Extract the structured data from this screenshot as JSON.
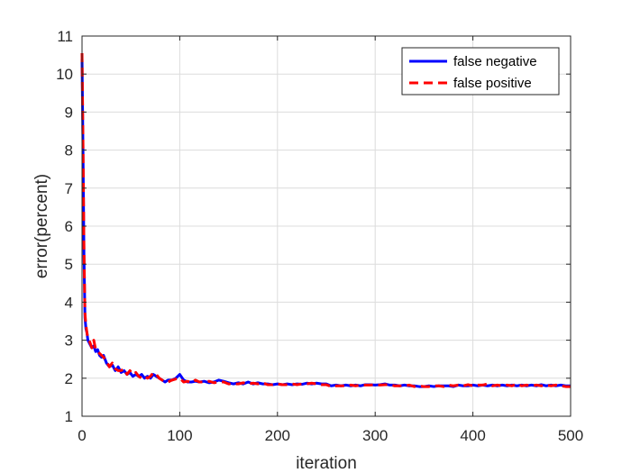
{
  "chart_data": {
    "type": "line",
    "xlabel": "iteration",
    "ylabel": "error(percent)",
    "xlim": [
      0,
      500
    ],
    "ylim": [
      1,
      11
    ],
    "xticks": [
      0,
      100,
      200,
      300,
      400,
      500
    ],
    "yticks": [
      1,
      2,
      3,
      4,
      5,
      6,
      7,
      8,
      9,
      10,
      11
    ],
    "grid": true,
    "legend_position": "top-right",
    "series": [
      {
        "name": "false negative",
        "color": "#0000ff",
        "style": "solid",
        "x": [
          0,
          1,
          2,
          3,
          4,
          5,
          6,
          8,
          10,
          12,
          14,
          16,
          18,
          20,
          22,
          25,
          28,
          31,
          34,
          37,
          40,
          43,
          46,
          49,
          52,
          55,
          58,
          61,
          64,
          67,
          70,
          73,
          76,
          79,
          82,
          85,
          88,
          92,
          96,
          100,
          104,
          108,
          112,
          116,
          120,
          125,
          130,
          135,
          140,
          145,
          150,
          155,
          160,
          165,
          170,
          175,
          180,
          185,
          190,
          195,
          200,
          205,
          210,
          215,
          220,
          225,
          230,
          235,
          240,
          245,
          250,
          255,
          260,
          265,
          270,
          275,
          280,
          285,
          290,
          295,
          300,
          305,
          310,
          315,
          320,
          325,
          330,
          335,
          340,
          345,
          350,
          355,
          360,
          365,
          370,
          375,
          380,
          385,
          390,
          395,
          400,
          405,
          410,
          415,
          420,
          425,
          430,
          435,
          440,
          445,
          450,
          455,
          460,
          465,
          470,
          475,
          480,
          485,
          490,
          495,
          500
        ],
        "y": [
          10.4,
          8.0,
          5.2,
          3.6,
          3.3,
          3.2,
          3.0,
          2.9,
          2.8,
          2.85,
          2.7,
          2.75,
          2.6,
          2.55,
          2.6,
          2.4,
          2.3,
          2.35,
          2.2,
          2.3,
          2.15,
          2.2,
          2.1,
          2.15,
          2.05,
          2.1,
          2.05,
          2.1,
          2.0,
          2.05,
          2.0,
          2.1,
          2.05,
          2.0,
          1.95,
          1.9,
          1.95,
          1.95,
          2.0,
          2.1,
          1.95,
          1.9,
          1.9,
          1.92,
          1.9,
          1.92,
          1.88,
          1.9,
          1.95,
          1.92,
          1.88,
          1.85,
          1.88,
          1.85,
          1.9,
          1.85,
          1.88,
          1.85,
          1.85,
          1.83,
          1.85,
          1.83,
          1.85,
          1.83,
          1.85,
          1.84,
          1.87,
          1.85,
          1.87,
          1.85,
          1.85,
          1.8,
          1.82,
          1.8,
          1.82,
          1.8,
          1.82,
          1.8,
          1.83,
          1.83,
          1.82,
          1.83,
          1.85,
          1.82,
          1.82,
          1.8,
          1.82,
          1.8,
          1.8,
          1.78,
          1.78,
          1.8,
          1.78,
          1.8,
          1.8,
          1.8,
          1.78,
          1.82,
          1.8,
          1.8,
          1.82,
          1.8,
          1.82,
          1.8,
          1.82,
          1.8,
          1.82,
          1.8,
          1.82,
          1.8,
          1.82,
          1.8,
          1.82,
          1.8,
          1.83,
          1.8,
          1.82,
          1.8,
          1.82,
          1.8,
          1.8
        ]
      },
      {
        "name": "false positive",
        "color": "#ff0000",
        "style": "dashed",
        "x": [
          0,
          1,
          2,
          3,
          4,
          5,
          6,
          8,
          10,
          12,
          14,
          16,
          18,
          20,
          22,
          25,
          28,
          31,
          34,
          37,
          40,
          43,
          46,
          49,
          52,
          55,
          58,
          61,
          64,
          67,
          70,
          73,
          76,
          79,
          82,
          85,
          88,
          92,
          96,
          100,
          104,
          108,
          112,
          116,
          120,
          125,
          130,
          135,
          140,
          145,
          150,
          155,
          160,
          165,
          170,
          175,
          180,
          185,
          190,
          195,
          200,
          205,
          210,
          215,
          220,
          225,
          230,
          235,
          240,
          245,
          250,
          255,
          260,
          265,
          270,
          275,
          280,
          285,
          290,
          295,
          300,
          305,
          310,
          315,
          320,
          325,
          330,
          335,
          340,
          345,
          350,
          355,
          360,
          365,
          370,
          375,
          380,
          385,
          390,
          395,
          400,
          405,
          410,
          415,
          420,
          425,
          430,
          435,
          440,
          445,
          450,
          455,
          460,
          465,
          470,
          475,
          480,
          485,
          490,
          495,
          500
        ],
        "y": [
          10.55,
          8.2,
          5.4,
          3.7,
          3.4,
          3.2,
          3.05,
          2.95,
          2.8,
          3.0,
          2.75,
          2.7,
          2.65,
          2.6,
          2.55,
          2.45,
          2.3,
          2.4,
          2.25,
          2.2,
          2.2,
          2.25,
          2.1,
          2.2,
          2.1,
          2.15,
          2.05,
          2.0,
          2.05,
          2.0,
          2.05,
          2.15,
          2.1,
          2.0,
          1.95,
          1.9,
          1.9,
          1.95,
          1.98,
          2.0,
          1.9,
          1.92,
          1.88,
          1.95,
          1.9,
          1.9,
          1.92,
          1.88,
          1.9,
          1.9,
          1.85,
          1.85,
          1.85,
          1.88,
          1.85,
          1.87,
          1.85,
          1.88,
          1.83,
          1.83,
          1.85,
          1.83,
          1.83,
          1.85,
          1.83,
          1.85,
          1.85,
          1.87,
          1.85,
          1.83,
          1.83,
          1.78,
          1.8,
          1.8,
          1.8,
          1.82,
          1.8,
          1.82,
          1.82,
          1.82,
          1.83,
          1.82,
          1.83,
          1.83,
          1.8,
          1.8,
          1.8,
          1.82,
          1.78,
          1.8,
          1.78,
          1.78,
          1.8,
          1.8,
          1.78,
          1.82,
          1.8,
          1.82,
          1.8,
          1.83,
          1.8,
          1.82,
          1.82,
          1.85,
          1.8,
          1.82,
          1.8,
          1.82,
          1.8,
          1.85,
          1.8,
          1.82,
          1.8,
          1.82,
          1.8,
          1.82,
          1.8,
          1.82,
          1.8,
          1.78,
          1.78
        ]
      }
    ]
  }
}
